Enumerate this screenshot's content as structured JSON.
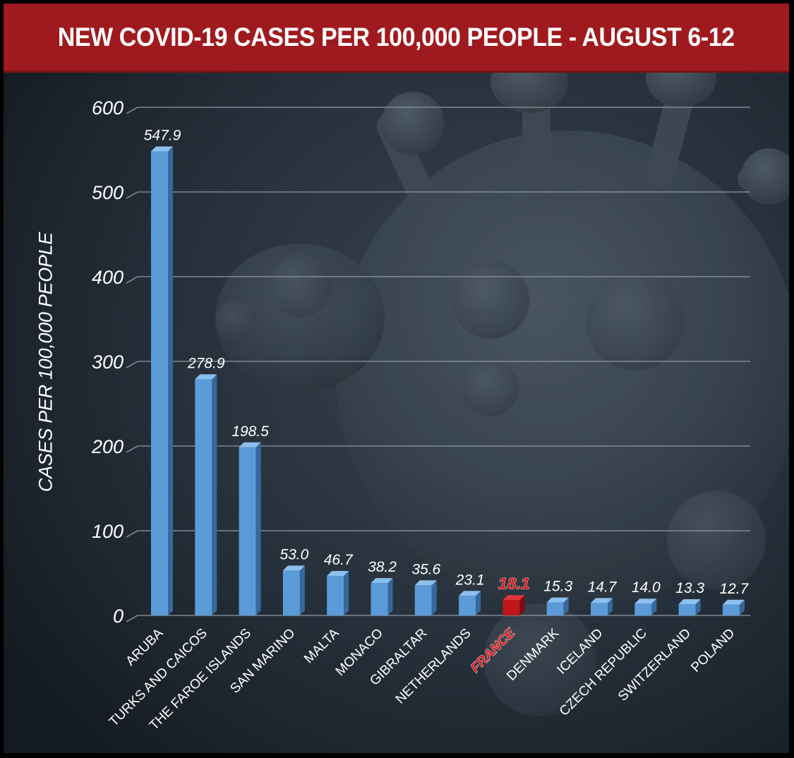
{
  "chart_data": {
    "type": "bar",
    "title": "NEW COVID-19 CASES PER 100,000 PEOPLE - AUGUST 6-12",
    "xlabel": "",
    "ylabel": "CASES PER 100,000 PEOPLE",
    "ylim": [
      0,
      600
    ],
    "yticks": [
      0,
      100,
      200,
      300,
      400,
      500,
      600
    ],
    "grid": true,
    "legend": "none",
    "categories": [
      "ARUBA",
      "TURKS AND CAICOS",
      "THE FAROE ISLANDS",
      "SAN MARINO",
      "MALTA",
      "MONACO",
      "GIBRALTAR",
      "NETHERLANDS",
      "FRANCE",
      "DENMARK",
      "ICELAND",
      "CZECH REPUBLIC",
      "SWITZERLAND",
      "POLAND"
    ],
    "values": [
      547.9,
      278.9,
      198.5,
      53.0,
      46.7,
      38.2,
      35.6,
      23.1,
      18.1,
      15.3,
      14.7,
      14.0,
      13.3,
      12.7
    ],
    "value_labels": [
      "547.9",
      "278.9",
      "198.5",
      "53.0",
      "46.7",
      "38.2",
      "35.6",
      "23.1",
      "18.1",
      "15.3",
      "14.7",
      "14.0",
      "13.3",
      "12.7"
    ],
    "highlight": "FRANCE",
    "colors": {
      "bar": "#5b9bd8",
      "highlight": "#c0161b",
      "title_band": "#9f1a1e",
      "background": "#1d2630",
      "gridline": "#8e98a2"
    }
  }
}
